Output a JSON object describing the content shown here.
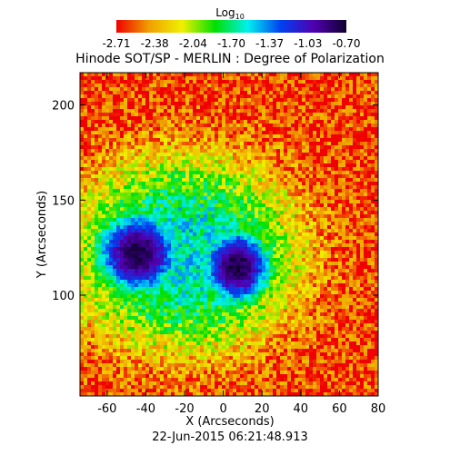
{
  "chart_data": {
    "type": "heatmap",
    "title": "Hinode SOT/SP - MERLIN : Degree of Polarization",
    "xlabel": "X (Arcseconds)",
    "ylabel": "Y (Arcseconds)",
    "timestamp": "22-Jun-2015 06:21:48.913",
    "xlim": [
      -74,
      80
    ],
    "ylim": [
      47,
      217
    ],
    "x_ticks": [
      -60,
      -40,
      -20,
      0,
      20,
      40,
      60,
      80
    ],
    "y_ticks": [
      100,
      150,
      200
    ],
    "colorbar": {
      "label_base": "Log",
      "label_sub": "10",
      "scale": "log10",
      "range": [
        -2.71,
        -0.7
      ],
      "ticks": [
        "-2.71",
        "-2.38",
        "-2.04",
        "-1.70",
        "-1.37",
        "-1.03",
        "-0.70"
      ],
      "colors": [
        "#f00000",
        "#f0a000",
        "#f0f000",
        "#00e000",
        "#00f0f0",
        "#0040f0",
        "#5000b0",
        "#100030"
      ]
    },
    "features": [
      {
        "name": "sunspot umbra west",
        "x": -44,
        "y": 122,
        "log10_value": -0.75
      },
      {
        "name": "sunspot umbra east",
        "x": 7,
        "y": 115,
        "log10_value": -0.8
      }
    ],
    "background_log10_value": -2.6
  }
}
